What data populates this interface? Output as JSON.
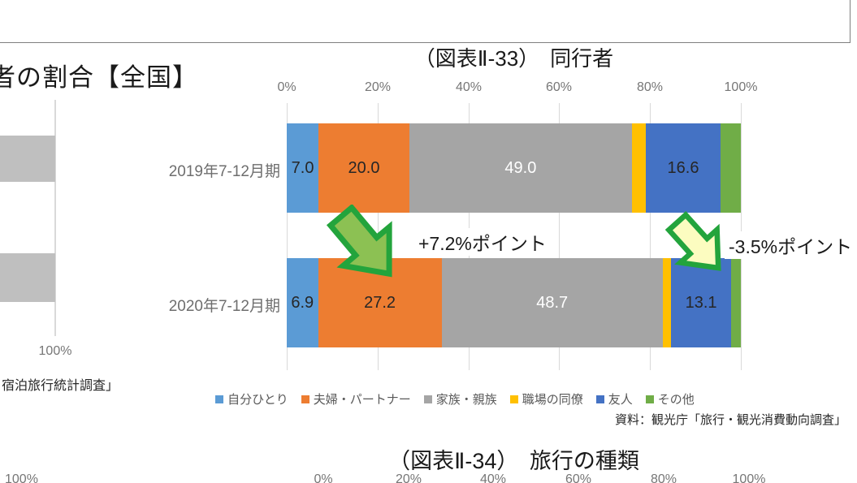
{
  "top_left_fragment": {
    "title": "者の割合【全国】",
    "axis_label_100": "100%",
    "source_fragment": "宿泊旅行統計調査」"
  },
  "main_chart": {
    "title": "（図表Ⅱ-33）　同行者",
    "source": "資料：観光庁「旅行・観光消費動向調査」"
  },
  "bottom_chart": {
    "title": "（図表Ⅱ-34）　旅行の種類",
    "left_axis_label": "100%",
    "x_ticks": [
      "0%",
      "20%",
      "40%",
      "60%",
      "80%",
      "100%"
    ]
  },
  "chart_data": {
    "type": "bar",
    "orientation": "horizontal-stacked",
    "title": "（図表Ⅱ-33）　同行者",
    "categories": [
      "2019年7-12月期",
      "2020年7-12月期"
    ],
    "series": [
      {
        "name": "自分ひとり",
        "color": "#5B9BD5",
        "values": [
          7.0,
          6.9
        ]
      },
      {
        "name": "夫婦・パートナー",
        "color": "#ED7D31",
        "values": [
          20.0,
          27.2
        ]
      },
      {
        "name": "家族・親族",
        "color": "#A5A5A5",
        "values": [
          49.0,
          48.7
        ]
      },
      {
        "name": "職場の同僚",
        "color": "#FFC000",
        "values": [
          3.0,
          1.9
        ]
      },
      {
        "name": "友人",
        "color": "#4472C4",
        "values": [
          16.6,
          13.1
        ]
      },
      {
        "name": "その他",
        "color": "#70AD47",
        "values": [
          4.4,
          2.2
        ]
      }
    ],
    "data_labels": [
      [
        "7.0",
        "20.0",
        "49.0",
        "",
        "16.6",
        ""
      ],
      [
        "6.9",
        "27.2",
        "48.7",
        "",
        "13.1",
        ""
      ]
    ],
    "xlim": [
      0,
      100
    ],
    "x_ticks": [
      "0%",
      "20%",
      "40%",
      "60%",
      "80%",
      "100%"
    ],
    "grid": true,
    "legend_position": "bottom",
    "annotations": [
      "+7.2%ポイント",
      "-3.5%ポイント"
    ],
    "gray_label_color": "#ffffff",
    "arrow_green_fill": "#8CC153",
    "arrow_yellow_fill": "#FCFCC0",
    "arrow_stroke": "#23A43C"
  }
}
